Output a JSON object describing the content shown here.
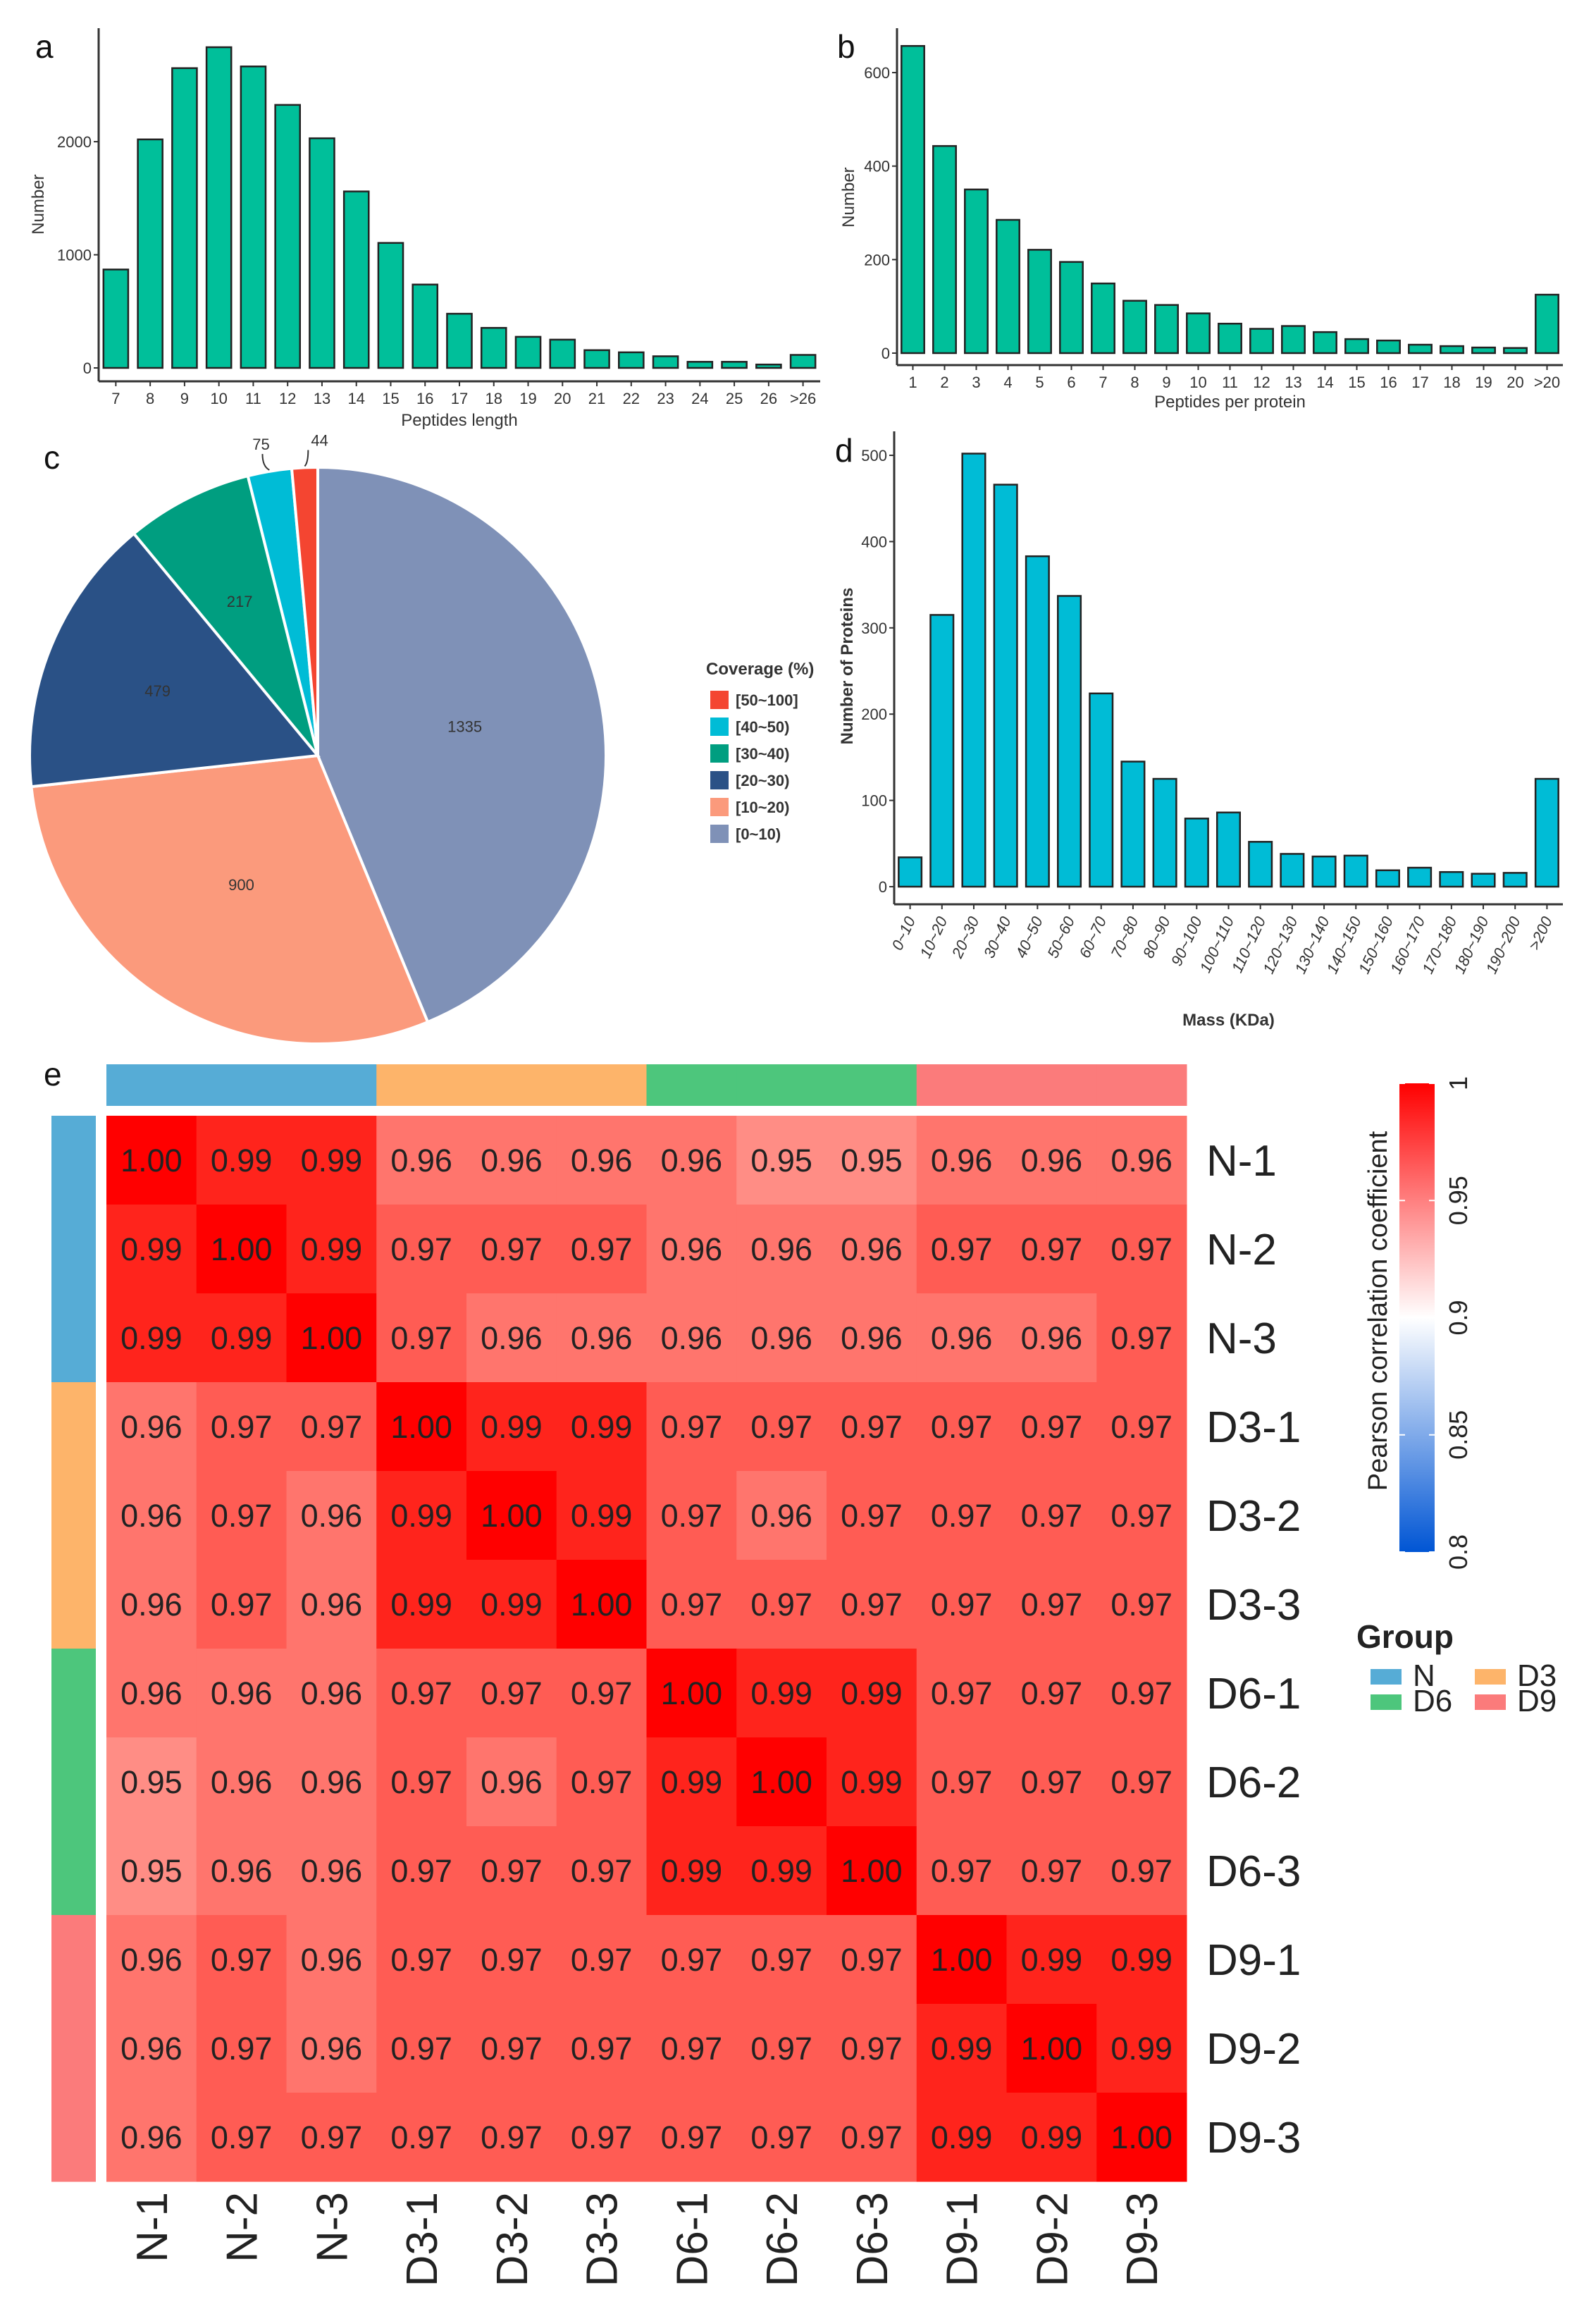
{
  "chart_data": [
    {
      "panel": "a",
      "type": "bar",
      "xlabel": "Peptides length",
      "ylabel": "Number",
      "ylim": [
        0,
        2900
      ],
      "yticks": [
        0,
        1000,
        2000
      ],
      "categories": [
        "7",
        "8",
        "9",
        "10",
        "11",
        "12",
        "13",
        "14",
        "15",
        "16",
        "17",
        "18",
        "19",
        "20",
        "21",
        "22",
        "23",
        "24",
        "25",
        "26",
        ">26"
      ],
      "values": [
        870,
        2020,
        2650,
        2835,
        2665,
        2325,
        2030,
        1560,
        1105,
        737,
        479,
        354,
        275,
        250,
        157,
        138,
        103,
        54,
        54,
        30,
        115
      ],
      "color": "#00BF9A"
    },
    {
      "panel": "b",
      "type": "bar",
      "xlabel": "Peptides per protein",
      "ylabel": "Number",
      "ylim": [
        0,
        680
      ],
      "yticks": [
        0,
        200,
        400,
        600
      ],
      "categories": [
        "1",
        "2",
        "3",
        "4",
        "5",
        "6",
        "7",
        "8",
        "9",
        "10",
        "11",
        "12",
        "13",
        "14",
        "15",
        "16",
        "17",
        "18",
        "19",
        "20",
        ">20"
      ],
      "values": [
        657,
        443,
        350,
        285,
        221,
        195,
        149,
        112,
        103,
        85,
        63,
        52,
        58,
        45,
        30,
        27,
        18,
        15,
        12,
        11,
        125
      ],
      "color": "#00BF9A"
    },
    {
      "panel": "c",
      "type": "pie",
      "legend_title": "Coverage (%)",
      "slices": [
        {
          "label": "[0~10)",
          "value": 1335,
          "color": "#7F91B7"
        },
        {
          "label": "[10~20)",
          "value": 900,
          "color": "#FB9A7C"
        },
        {
          "label": "[20~30)",
          "value": 479,
          "color": "#2A5186"
        },
        {
          "label": "[30~40)",
          "value": 217,
          "color": "#009E80"
        },
        {
          "label": "[40~50)",
          "value": 75,
          "color": "#00BCD6"
        },
        {
          "label": "[50~100]",
          "value": 44,
          "color": "#F44531"
        }
      ],
      "legend_order": [
        "[50~100]",
        "[40~50)",
        "[30~40)",
        "[20~30)",
        "[10~20)",
        "[0~10)"
      ],
      "legend": "right"
    },
    {
      "panel": "d",
      "type": "bar",
      "xlabel": "Mass (KDa)",
      "ylabel": "Number of Proteins",
      "ylim": [
        0,
        520
      ],
      "yticks": [
        0,
        100,
        200,
        300,
        400,
        500
      ],
      "categories": [
        "0~10",
        "10~20",
        "20~30",
        "30~40",
        "40~50",
        "50~60",
        "60~70",
        "70~80",
        "80~90",
        "90~100",
        "100~110",
        "110~120",
        "120~130",
        "130~140",
        "140~150",
        "150~160",
        "160~170",
        "170~180",
        "180~190",
        "190~200",
        ">200"
      ],
      "values": [
        34,
        315,
        502,
        466,
        383,
        337,
        224,
        145,
        125,
        79,
        86,
        52,
        38,
        35,
        36,
        19,
        22,
        17,
        15,
        16,
        125
      ],
      "color": "#00BCD6"
    },
    {
      "panel": "e",
      "type": "heatmap",
      "labels": [
        "N-1",
        "N-2",
        "N-3",
        "D3-1",
        "D3-2",
        "D3-3",
        "D6-1",
        "D6-2",
        "D6-3",
        "D9-1",
        "D9-2",
        "D9-3"
      ],
      "groups": [
        "N",
        "N",
        "N",
        "D3",
        "D3",
        "D3",
        "D6",
        "D6",
        "D6",
        "D9",
        "D9",
        "D9"
      ],
      "matrix": [
        [
          "1.00",
          "0.99",
          "0.99",
          "0.96",
          "0.96",
          "0.96",
          "0.96",
          "0.95",
          "0.95",
          "0.96",
          "0.96",
          "0.96"
        ],
        [
          "0.99",
          "1.00",
          "0.99",
          "0.97",
          "0.97",
          "0.97",
          "0.96",
          "0.96",
          "0.96",
          "0.97",
          "0.97",
          "0.97"
        ],
        [
          "0.99",
          "0.99",
          "1.00",
          "0.97",
          "0.96",
          "0.96",
          "0.96",
          "0.96",
          "0.96",
          "0.96",
          "0.96",
          "0.97"
        ],
        [
          "0.96",
          "0.97",
          "0.97",
          "1.00",
          "0.99",
          "0.99",
          "0.97",
          "0.97",
          "0.97",
          "0.97",
          "0.97",
          "0.97"
        ],
        [
          "0.96",
          "0.97",
          "0.96",
          "0.99",
          "1.00",
          "0.99",
          "0.97",
          "0.96",
          "0.97",
          "0.97",
          "0.97",
          "0.97"
        ],
        [
          "0.96",
          "0.97",
          "0.96",
          "0.99",
          "0.99",
          "1.00",
          "0.97",
          "0.97",
          "0.97",
          "0.97",
          "0.97",
          "0.97"
        ],
        [
          "0.96",
          "0.96",
          "0.96",
          "0.97",
          "0.97",
          "0.97",
          "1.00",
          "0.99",
          "0.99",
          "0.97",
          "0.97",
          "0.97"
        ],
        [
          "0.95",
          "0.96",
          "0.96",
          "0.97",
          "0.96",
          "0.97",
          "0.99",
          "1.00",
          "0.99",
          "0.97",
          "0.97",
          "0.97"
        ],
        [
          "0.95",
          "0.96",
          "0.96",
          "0.97",
          "0.97",
          "0.97",
          "0.99",
          "0.99",
          "1.00",
          "0.97",
          "0.97",
          "0.97"
        ],
        [
          "0.96",
          "0.97",
          "0.96",
          "0.97",
          "0.97",
          "0.97",
          "0.97",
          "0.97",
          "0.97",
          "1.00",
          "0.99",
          "0.99"
        ],
        [
          "0.96",
          "0.97",
          "0.96",
          "0.97",
          "0.97",
          "0.97",
          "0.97",
          "0.97",
          "0.97",
          "0.99",
          "1.00",
          "0.99"
        ],
        [
          "0.96",
          "0.97",
          "0.97",
          "0.97",
          "0.97",
          "0.97",
          "0.97",
          "0.97",
          "0.97",
          "0.99",
          "0.99",
          "1.00"
        ]
      ],
      "colorbar": {
        "title": "Pearson correlation coefficient",
        "range": [
          0.8,
          1.0
        ],
        "ticks": [
          "0.8",
          "0.85",
          "0.9",
          "0.95",
          "1"
        ],
        "low": "#0055D4",
        "mid": "#FFFFFF",
        "high": "#FF0000"
      },
      "group_legend": {
        "title": "Group",
        "items": [
          {
            "label": "N",
            "color": "#56ACD6"
          },
          {
            "label": "D3",
            "color": "#FDB46A"
          },
          {
            "label": "D6",
            "color": "#4DC67C"
          },
          {
            "label": "D9",
            "color": "#FB7B7B"
          }
        ]
      }
    }
  ]
}
